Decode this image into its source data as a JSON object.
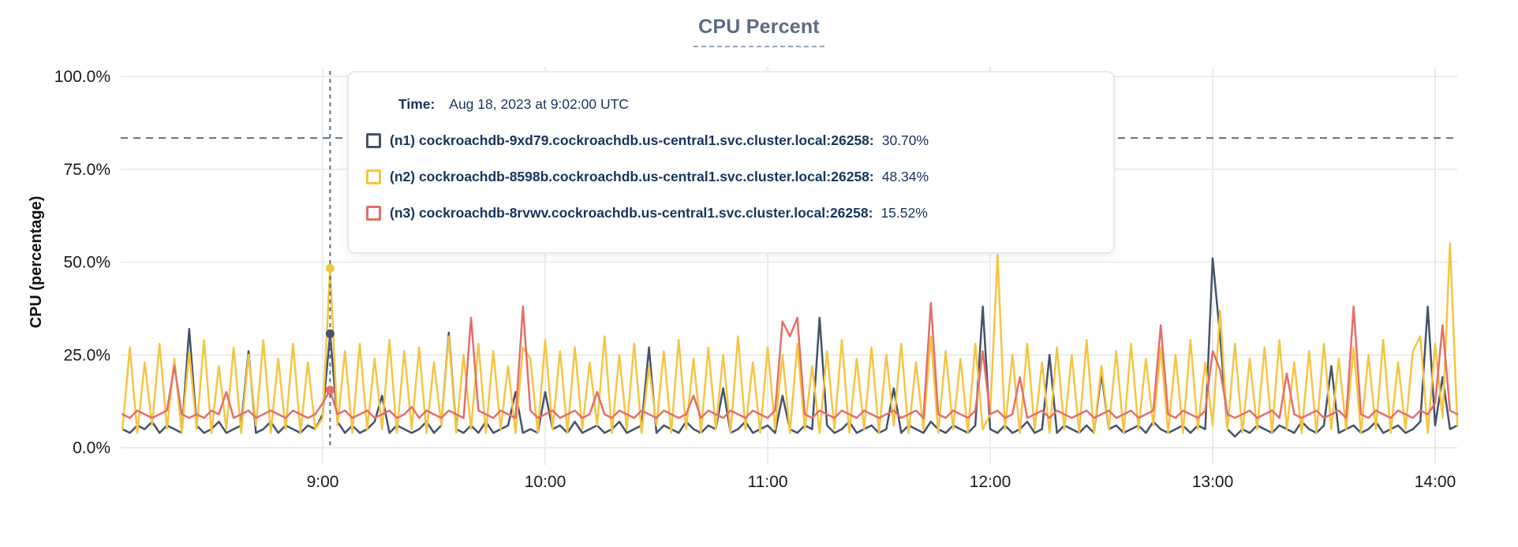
{
  "page": {
    "background": "#ffffff"
  },
  "tooltip": {
    "time_label": "Time:",
    "time_value": "Aug 18, 2023 at 9:02:00 UTC",
    "rows": [
      {
        "name": "(n1) cockroachdb-9xd79.cockroachdb.us-central1.svc.cluster.local:26258:",
        "value": "30.70%",
        "color": "#45526c"
      },
      {
        "name": "(n2) cockroachdb-8598b.cockroachdb.us-central1.svc.cluster.local:26258:",
        "value": "48.34%",
        "color": "#f5c542"
      },
      {
        "name": "(n3) cockroachdb-8rvwv.cockroachdb.us-central1.svc.cluster.local:26258:",
        "value": "15.52%",
        "color": "#e56e68"
      }
    ]
  },
  "chart_data": {
    "type": "line",
    "title": "CPU Percent",
    "ylabel": "CPU (percentage)",
    "xlabel": "",
    "ylim": [
      0,
      100
    ],
    "grid": true,
    "y_ticks": [
      {
        "pct": 0,
        "label": "0.0%"
      },
      {
        "pct": 25,
        "label": "25.0%"
      },
      {
        "pct": 50,
        "label": "50.0%"
      },
      {
        "pct": 75,
        "label": "75.0%"
      },
      {
        "pct": 100,
        "label": "100.0%"
      }
    ],
    "x_ticks": [
      {
        "minutes": 60,
        "label": "9:00"
      },
      {
        "minutes": 120,
        "label": "10:00"
      },
      {
        "minutes": 180,
        "label": "11:00"
      },
      {
        "minutes": 240,
        "label": "12:00"
      },
      {
        "minutes": 300,
        "label": "13:00"
      },
      {
        "minutes": 360,
        "label": "14:00"
      }
    ],
    "x_minutes_start": 6,
    "x_minutes_step": 2,
    "alert_line_pct": 83.4,
    "crosshair": {
      "minutes": 62,
      "time_text": "Aug 18, 2023 at 9:02:00 UTC",
      "points": [
        {
          "series": "n1",
          "pct": 30.7
        },
        {
          "series": "n2",
          "pct": 48.34
        },
        {
          "series": "n3",
          "pct": 15.52
        }
      ]
    },
    "colors": {
      "grid": "#ececec",
      "axis_text": "#1a1a1a",
      "alert_line": "#5c7384",
      "crosshair": "#5a6e7e"
    },
    "series": [
      {
        "id": "n1",
        "label": "(n1) cockroachdb-9xd79.cockroachdb.us-central1.svc.cluster.local:26258",
        "color": "#45526c",
        "values": [
          5,
          4,
          6,
          5,
          7,
          4,
          6,
          5,
          4,
          32,
          6,
          4,
          5,
          7,
          4,
          5,
          6,
          26,
          4,
          5,
          7,
          4,
          6,
          5,
          4,
          6,
          5,
          9,
          30.7,
          7,
          4,
          6,
          4,
          5,
          7,
          14,
          4,
          6,
          5,
          4,
          5,
          7,
          4,
          6,
          31,
          5,
          4,
          6,
          4,
          7,
          4,
          5,
          6,
          15,
          4,
          5,
          4,
          15,
          5,
          6,
          4,
          7,
          4,
          5,
          6,
          4,
          5,
          7,
          4,
          5,
          6,
          27,
          4,
          6,
          5,
          4,
          7,
          5,
          4,
          6,
          5,
          16,
          4,
          5,
          7,
          4,
          5,
          6,
          4,
          14,
          5,
          4,
          6,
          5,
          35,
          6,
          4,
          5,
          7,
          4,
          5,
          6,
          4,
          5,
          16,
          4,
          6,
          5,
          4,
          7,
          5,
          4,
          6,
          5,
          4,
          6,
          38,
          5,
          4,
          6,
          4,
          5,
          7,
          4,
          5,
          25,
          4,
          6,
          5,
          4,
          6,
          4,
          20,
          5,
          6,
          4,
          5,
          6,
          4,
          7,
          5,
          4,
          5,
          6,
          4,
          6,
          5,
          51,
          30,
          5,
          3,
          5,
          4,
          6,
          5,
          4,
          6,
          5,
          4,
          7,
          5,
          4,
          6,
          22,
          4,
          5,
          6,
          4,
          5,
          7,
          4,
          5,
          6,
          4,
          5,
          7,
          38,
          6,
          19,
          5,
          6
        ]
      },
      {
        "id": "n2",
        "label": "(n2) cockroachdb-8598b.cockroachdb.us-central1.svc.cluster.local:26258",
        "color": "#f5c542",
        "values": [
          5,
          27,
          4,
          23,
          6,
          28,
          5,
          24,
          4,
          26,
          5,
          29,
          4,
          22,
          5,
          27,
          4,
          25,
          6,
          29,
          4,
          24,
          5,
          28,
          4,
          23,
          5,
          8,
          48.3,
          6,
          26,
          4,
          28,
          5,
          24,
          5,
          29,
          4,
          26,
          5,
          27,
          4,
          23,
          6,
          30,
          4,
          25,
          5,
          28,
          4,
          26,
          5,
          22,
          4,
          27,
          24,
          4,
          29,
          5,
          26,
          4,
          27,
          5,
          23,
          6,
          30,
          4,
          25,
          5,
          28,
          4,
          22,
          6,
          26,
          4,
          29,
          5,
          24,
          4,
          27,
          5,
          25,
          4,
          30,
          5,
          23,
          4,
          27,
          5,
          25,
          4,
          28,
          5,
          22,
          4,
          26,
          5,
          29,
          4,
          24,
          5,
          27,
          4,
          25,
          6,
          28,
          4,
          23,
          5,
          30,
          4,
          26,
          5,
          24,
          4,
          28,
          5,
          9,
          52,
          5,
          25,
          4,
          28,
          5,
          23,
          4,
          27,
          5,
          25,
          4,
          29,
          4,
          22,
          5,
          26,
          4,
          28,
          5,
          24,
          6,
          27,
          4,
          25,
          4,
          29,
          5,
          23,
          6,
          37,
          5,
          28,
          4,
          24,
          5,
          27,
          4,
          29,
          5,
          23,
          4,
          26,
          4,
          28,
          5,
          24,
          5,
          27,
          4,
          25,
          5,
          29,
          4,
          23,
          5,
          26,
          30,
          4,
          28,
          8,
          55,
          6
        ]
      },
      {
        "id": "n3",
        "label": "(n3) cockroachdb-8rvwv.cockroachdb.us-central1.svc.cluster.local:26258",
        "color": "#e56e68",
        "values": [
          9,
          8,
          10,
          9,
          8,
          9,
          10,
          22,
          9,
          8,
          9,
          8,
          10,
          9,
          15,
          8,
          9,
          10,
          8,
          9,
          10,
          9,
          8,
          10,
          9,
          8,
          9,
          12,
          15.5,
          9,
          10,
          8,
          9,
          10,
          8,
          9,
          10,
          8,
          9,
          11,
          8,
          10,
          9,
          8,
          10,
          9,
          8,
          35,
          10,
          9,
          8,
          10,
          9,
          8,
          38,
          10,
          8,
          9,
          10,
          8,
          9,
          10,
          8,
          9,
          15,
          9,
          8,
          10,
          9,
          8,
          10,
          9,
          8,
          10,
          9,
          8,
          9,
          14,
          8,
          10,
          9,
          8,
          10,
          9,
          8,
          10,
          9,
          8,
          10,
          34,
          30,
          35,
          9,
          8,
          10,
          9,
          8,
          10,
          9,
          8,
          10,
          9,
          8,
          9,
          10,
          8,
          9,
          10,
          8,
          39,
          9,
          8,
          10,
          9,
          8,
          10,
          26,
          9,
          10,
          8,
          9,
          19,
          8,
          9,
          10,
          8,
          10,
          9,
          8,
          9,
          10,
          8,
          9,
          10,
          8,
          9,
          10,
          8,
          9,
          10,
          33,
          9,
          8,
          10,
          9,
          8,
          10,
          26,
          21,
          9,
          8,
          9,
          10,
          8,
          9,
          10,
          8,
          20,
          9,
          8,
          9,
          10,
          8,
          9,
          10,
          8,
          38,
          9,
          8,
          10,
          9,
          8,
          10,
          9,
          8,
          10,
          9,
          12,
          33,
          10,
          9
        ]
      }
    ]
  }
}
